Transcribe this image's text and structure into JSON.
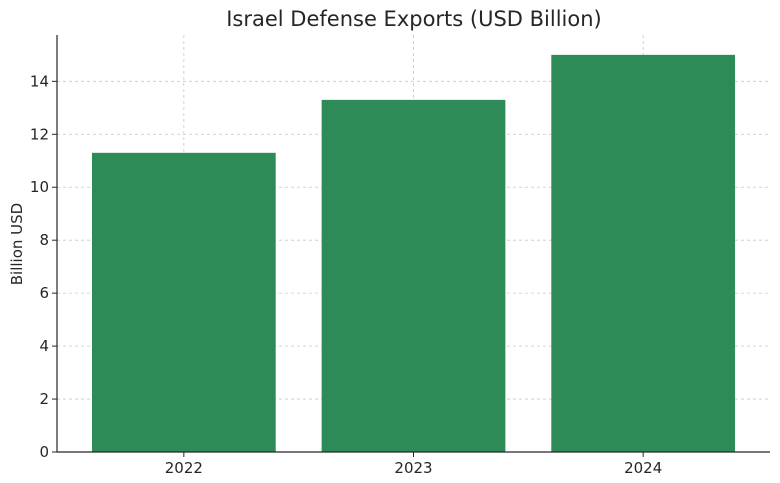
{
  "chart_data": {
    "type": "bar",
    "title": "Israel Defense Exports (USD Billion)",
    "xlabel": "",
    "ylabel": "Billion USD",
    "categories": [
      "2022",
      "2023",
      "2024"
    ],
    "values": [
      11.3,
      13.3,
      15.0
    ],
    "ylim": [
      0,
      15.75
    ],
    "yticks": [
      0,
      2,
      4,
      6,
      8,
      10,
      12,
      14
    ],
    "grid": true,
    "bar_color": "#2e8b57"
  }
}
